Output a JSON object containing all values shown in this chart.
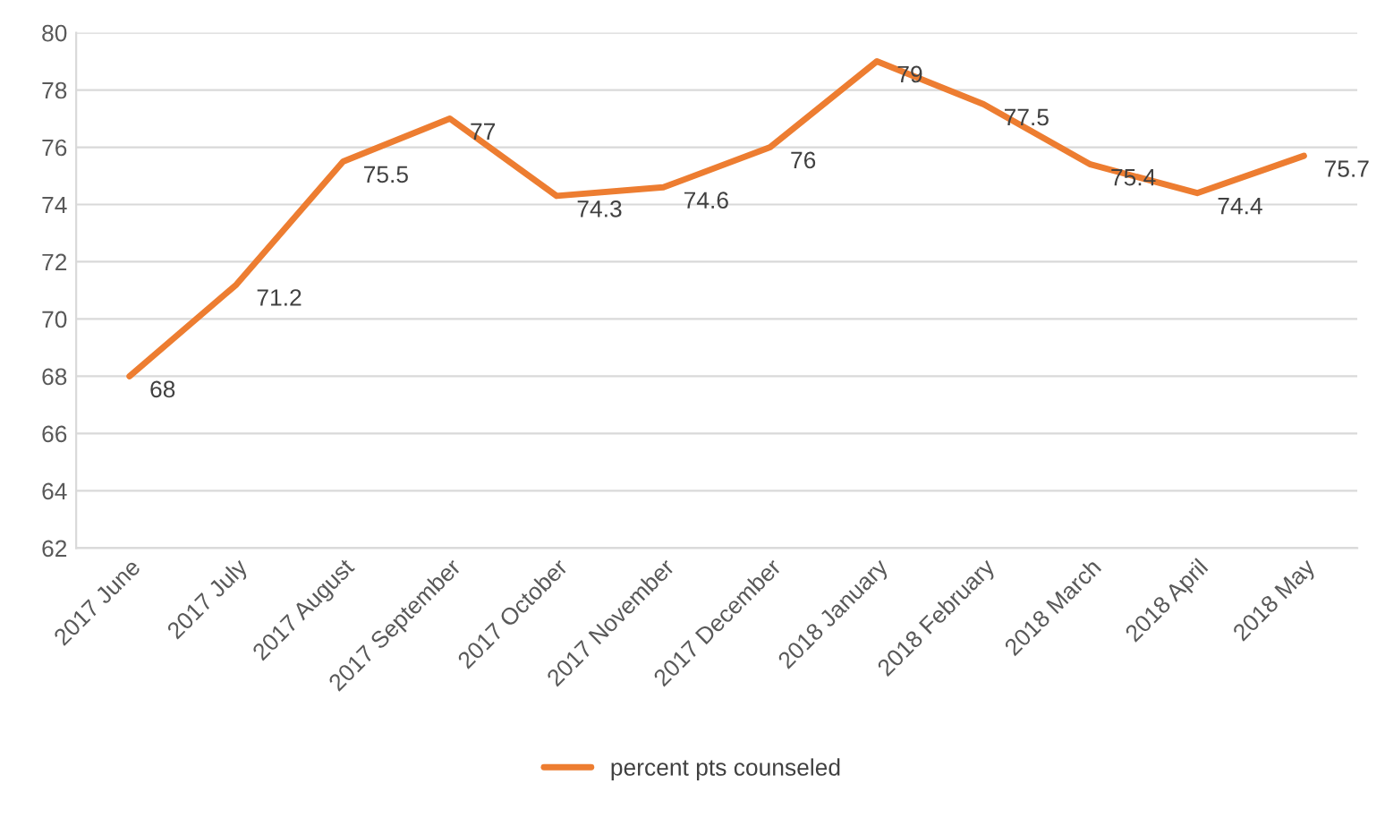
{
  "chart_data": {
    "type": "line",
    "categories": [
      "2017 June",
      "2017 July",
      "2017 August",
      "2017 September",
      "2017 October",
      "2017 November",
      "2017 December",
      "2018 January",
      "2018 February",
      "2018 March",
      "2018 April",
      "2018 May"
    ],
    "series": [
      {
        "name": "percent pts counseled",
        "color": "#ed7d31",
        "values": [
          68,
          71.2,
          75.5,
          77,
          74.3,
          74.6,
          76,
          79,
          77.5,
          75.4,
          74.4,
          75.7
        ]
      }
    ],
    "ylim": [
      62,
      80
    ],
    "yticks": [
      62,
      64,
      66,
      68,
      70,
      72,
      74,
      76,
      78,
      80
    ],
    "grid": "y",
    "legend": "bottom",
    "data_labels": true,
    "marker": "none",
    "line_style": "solid"
  }
}
